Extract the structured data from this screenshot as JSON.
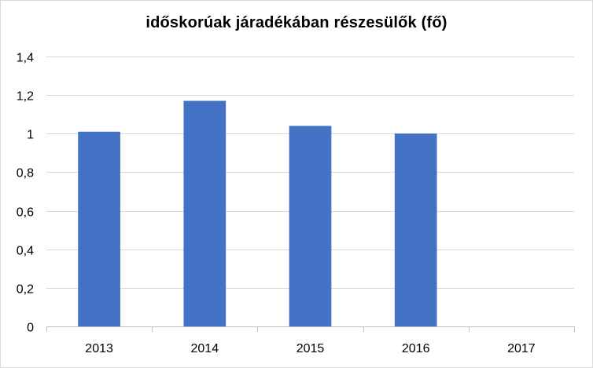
{
  "chart_data": {
    "type": "bar",
    "title": "időskorúak járadékában részesülők (fő)",
    "xlabel": "",
    "ylabel": "",
    "categories": [
      "2013",
      "2014",
      "2015",
      "2016",
      "2017"
    ],
    "values": [
      1.01,
      1.17,
      1.04,
      1.0,
      0
    ],
    "ylim": [
      0,
      1.4
    ],
    "yticks": [
      0,
      0.2,
      0.4,
      0.6,
      0.8,
      1,
      1.2,
      1.4
    ],
    "ytick_labels": [
      "0",
      "0,2",
      "0,4",
      "0,6",
      "0,8",
      "1",
      "1,2",
      "1,4"
    ],
    "grid": true,
    "legend": "none",
    "colors": {
      "bar": "#4472c4",
      "grid": "#d9d9d9",
      "axis": "#bfbfbf"
    }
  }
}
